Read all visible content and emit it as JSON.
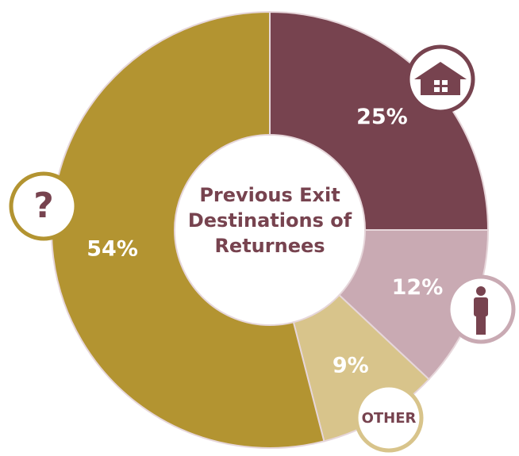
{
  "chart_data": {
    "type": "donut",
    "title": "Previous Exit Destinations of Returnees",
    "categories": [
      null,
      null,
      null,
      null
    ],
    "values": [
      25,
      12,
      9,
      54
    ],
    "value_labels": [
      "25%",
      "12%",
      "9%",
      "54%"
    ],
    "colors": [
      "#77434f",
      "#c9aab3",
      "#d8c48b",
      "#b39431"
    ],
    "annotations": [
      "?",
      "OTHER"
    ]
  }
}
